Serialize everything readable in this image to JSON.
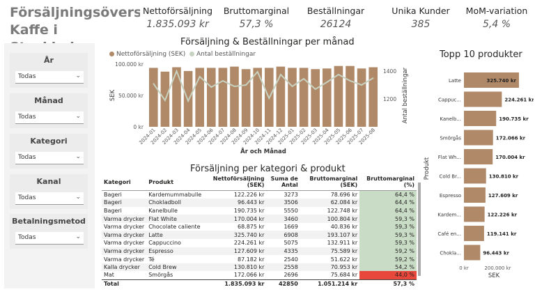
{
  "title": {
    "line1": "Försäljningsöversikt",
    "line2": "Kaffe i Stockholm"
  },
  "kpis": [
    {
      "label": "Nettoförsäljning",
      "value": "1.835.093 kr"
    },
    {
      "label": "Bruttomarginal",
      "value": "57,3 %"
    },
    {
      "label": "Beställningar",
      "value": "26124"
    },
    {
      "label": "Unika Kunder",
      "value": "385"
    },
    {
      "label": "MoM-variation",
      "value": "5,4 %"
    }
  ],
  "slicers": [
    {
      "label": "År",
      "value": "Todas"
    },
    {
      "label": "Månad",
      "value": "Todas"
    },
    {
      "label": "Kategori",
      "value": "Todas"
    },
    {
      "label": "Kanal",
      "value": "Todas"
    },
    {
      "label": "Betalningsmetod",
      "value": "Todas"
    }
  ],
  "colors": {
    "bar": "#b08968",
    "line": "#c8d2c0",
    "kpi_bad": "#e8473c",
    "margin_cell": "#c9dcc5"
  },
  "chart_data": [
    {
      "type": "bar",
      "title": "Försäljning & Beställningar per månad",
      "legend": [
        "Nettoförsäljning (SEK)",
        "Antal beställningar"
      ],
      "legend_position": "top-left",
      "xlabel": "År och Månad",
      "ylabel": "SEK",
      "y2label": "Antal beställningar",
      "categories": [
        "2024-01",
        "2024-02",
        "2024-03",
        "2024-04",
        "2024-05",
        "2024-06",
        "2024-07",
        "2024-08",
        "2024-09",
        "2024-10",
        "2024-11",
        "2024-12",
        "2025-01",
        "2025-02",
        "2025-03",
        "2025-04",
        "2025-05",
        "2025-06",
        "2025-07",
        "2025-08"
      ],
      "x_tick_labels": [
        "2024-01",
        "2024-02",
        "2024-03",
        "2024-04",
        "2024-05",
        "2024-06",
        "2024-07",
        "2024-08",
        "2024-09",
        "2024-10",
        "2024-11",
        "2024-12",
        "2025-01",
        "2025-02",
        "2025-03",
        "2025-04",
        "2025-05",
        "2025-06",
        "2025-07",
        "2025-08"
      ],
      "y_ticks": [
        "0 kr",
        "50.000 kr",
        "100.000 kr"
      ],
      "y2_ticks": [
        "1200",
        "1400"
      ],
      "ylim": [
        0,
        100000
      ],
      "y2lim": [
        1000,
        1450
      ],
      "series": [
        {
          "name": "Nettoförsäljning (SEK)",
          "axis": "left",
          "values": [
            94000,
            88000,
            95000,
            89000,
            94000,
            94000,
            94000,
            96000,
            92000,
            94000,
            94000,
            96000,
            94000,
            94000,
            92000,
            93000,
            97000,
            97000,
            93000,
            95000
          ]
        },
        {
          "name": "Antal beställningar",
          "axis": "right",
          "values": [
            1310,
            1190,
            1400,
            1185,
            1360,
            1285,
            1330,
            1290,
            1300,
            1395,
            1205,
            1375,
            1290,
            1345,
            1270,
            1320,
            1375,
            1330,
            1300,
            1350
          ]
        }
      ]
    },
    {
      "type": "bar",
      "orientation": "horizontal",
      "title": "Topp 10 produkter",
      "xlabel": "SEK",
      "ylabel": "Produkt",
      "x_ticks": [
        "0 kr",
        "200.000 kr"
      ],
      "xlim": [
        0,
        330000
      ],
      "categories": [
        "Latte",
        "Cappuc...",
        "Kanelb...",
        "Smörgås",
        "Flat Wh...",
        "Cold Br...",
        "Espresso",
        "Kardem...",
        "Café en...",
        "Chokla..."
      ],
      "values": [
        325740,
        224261,
        190735,
        172066,
        170004,
        130810,
        127609,
        122226,
        119141,
        96443
      ],
      "data_labels": [
        "325.740 kr",
        "224.261 kr",
        "190.735 kr",
        "172.066 kr",
        "170.004 kr",
        "130.810 kr",
        "127.609 kr",
        "122.226 kr",
        "119.141 kr",
        "96.443 kr"
      ]
    }
  ],
  "table": {
    "title": "Försäljning per kategori & produkt",
    "columns": [
      "Kategori",
      "Produkt",
      "Nettoförsäljning (SEK)",
      "Suma de Antal",
      "Bruttomarginal (SEK)",
      "Bruttomarginal (%)"
    ],
    "rows": [
      [
        "Bageri",
        "Kardemummabulle",
        "122.226 kr",
        "3273",
        "78.696 kr",
        "64,4 %"
      ],
      [
        "Bageri",
        "Chokladboll",
        "96.443 kr",
        "3506",
        "62.084 kr",
        "64,4 %"
      ],
      [
        "Bageri",
        "Kanelbulle",
        "190.735 kr",
        "5550",
        "122.748 kr",
        "64,4 %"
      ],
      [
        "Varma drycker",
        "Flat White",
        "170.004 kr",
        "3460",
        "100.804 kr",
        "59,3 %"
      ],
      [
        "Varma drycker",
        "Chocolate caliente",
        "68.875 kr",
        "1669",
        "40.836 kr",
        "59,3 %"
      ],
      [
        "Varma drycker",
        "Latte",
        "325.740 kr",
        "6908",
        "193.107 kr",
        "59,3 %"
      ],
      [
        "Varma drycker",
        "Cappuccino",
        "224.261 kr",
        "5075",
        "132.911 kr",
        "59,3 %"
      ],
      [
        "Varma drycker",
        "Espresso",
        "127.609 kr",
        "4335",
        "75.589 kr",
        "59,2 %"
      ],
      [
        "Varma drycker",
        "Té",
        "87.182 kr",
        "2540",
        "51.622 kr",
        "59,2 %"
      ],
      [
        "Kalla drycker",
        "Cold Brew",
        "130.810 kr",
        "2558",
        "70.953 kr",
        "54,2 %"
      ],
      [
        "Mat",
        "Smörgås",
        "172.066 kr",
        "2696",
        "75.684 kr",
        "44,0 %"
      ]
    ],
    "total": [
      "Total",
      "",
      "1.835.093 kr",
      "42850",
      "1.051.214 kr",
      "57,3 %"
    ]
  }
}
